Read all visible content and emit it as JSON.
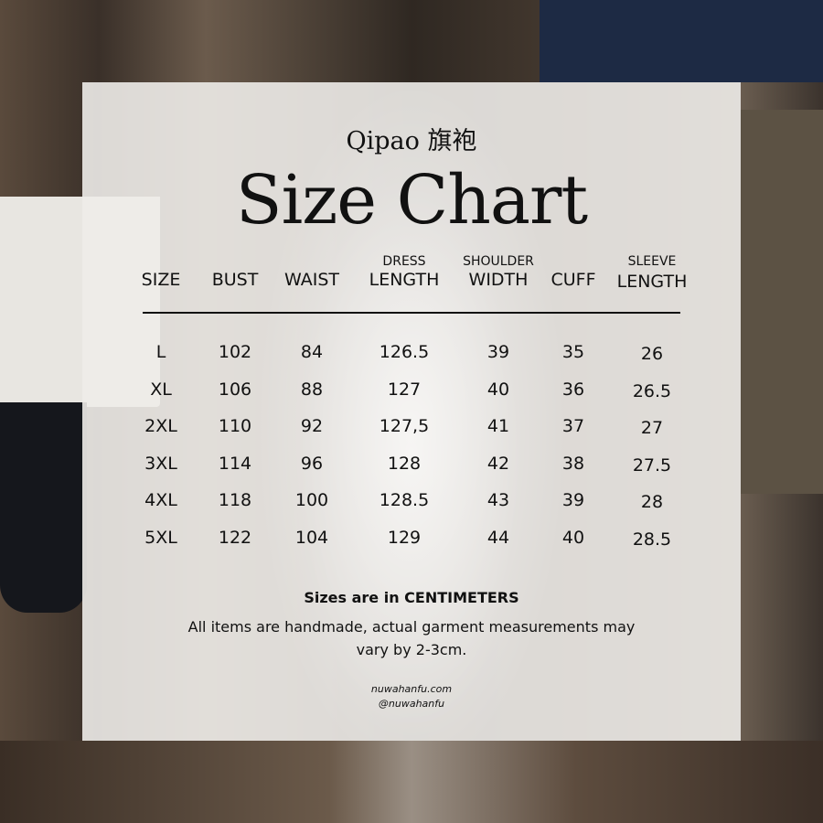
{
  "subtitle": "Qipao 旗袍",
  "title": "Size Chart",
  "headers": [
    {
      "top": "",
      "main": "SIZE"
    },
    {
      "top": "",
      "main": "BUST"
    },
    {
      "top": "",
      "main": "WAIST"
    },
    {
      "top": "DRESS",
      "main": "LENGTH"
    },
    {
      "top": "SHOULDER",
      "main": "WIDTH"
    },
    {
      "top": "",
      "main": "CUFF"
    },
    {
      "top": "SLEEVE",
      "main": "LENGTH"
    }
  ],
  "rows": [
    [
      "L",
      "102",
      "84",
      "126.5",
      "39",
      "35",
      "26"
    ],
    [
      "XL",
      "106",
      "88",
      "127",
      "40",
      "36",
      "26.5"
    ],
    [
      "2XL",
      "110",
      "92",
      "127,5",
      "41",
      "37",
      "27"
    ],
    [
      "3XL",
      "114",
      "96",
      "128",
      "42",
      "38",
      "27.5"
    ],
    [
      "4XL",
      "118",
      "100",
      "128.5",
      "43",
      "39",
      "28"
    ],
    [
      "5XL",
      "122",
      "104",
      "129",
      "44",
      "40",
      "28.5"
    ]
  ],
  "note_bold": "Sizes are in CENTIMETERS",
  "note": "All items are handmade, actual garment measurements may vary by 2-3cm.",
  "website": "nuwahanfu.com",
  "handle": "@nuwahanfu"
}
